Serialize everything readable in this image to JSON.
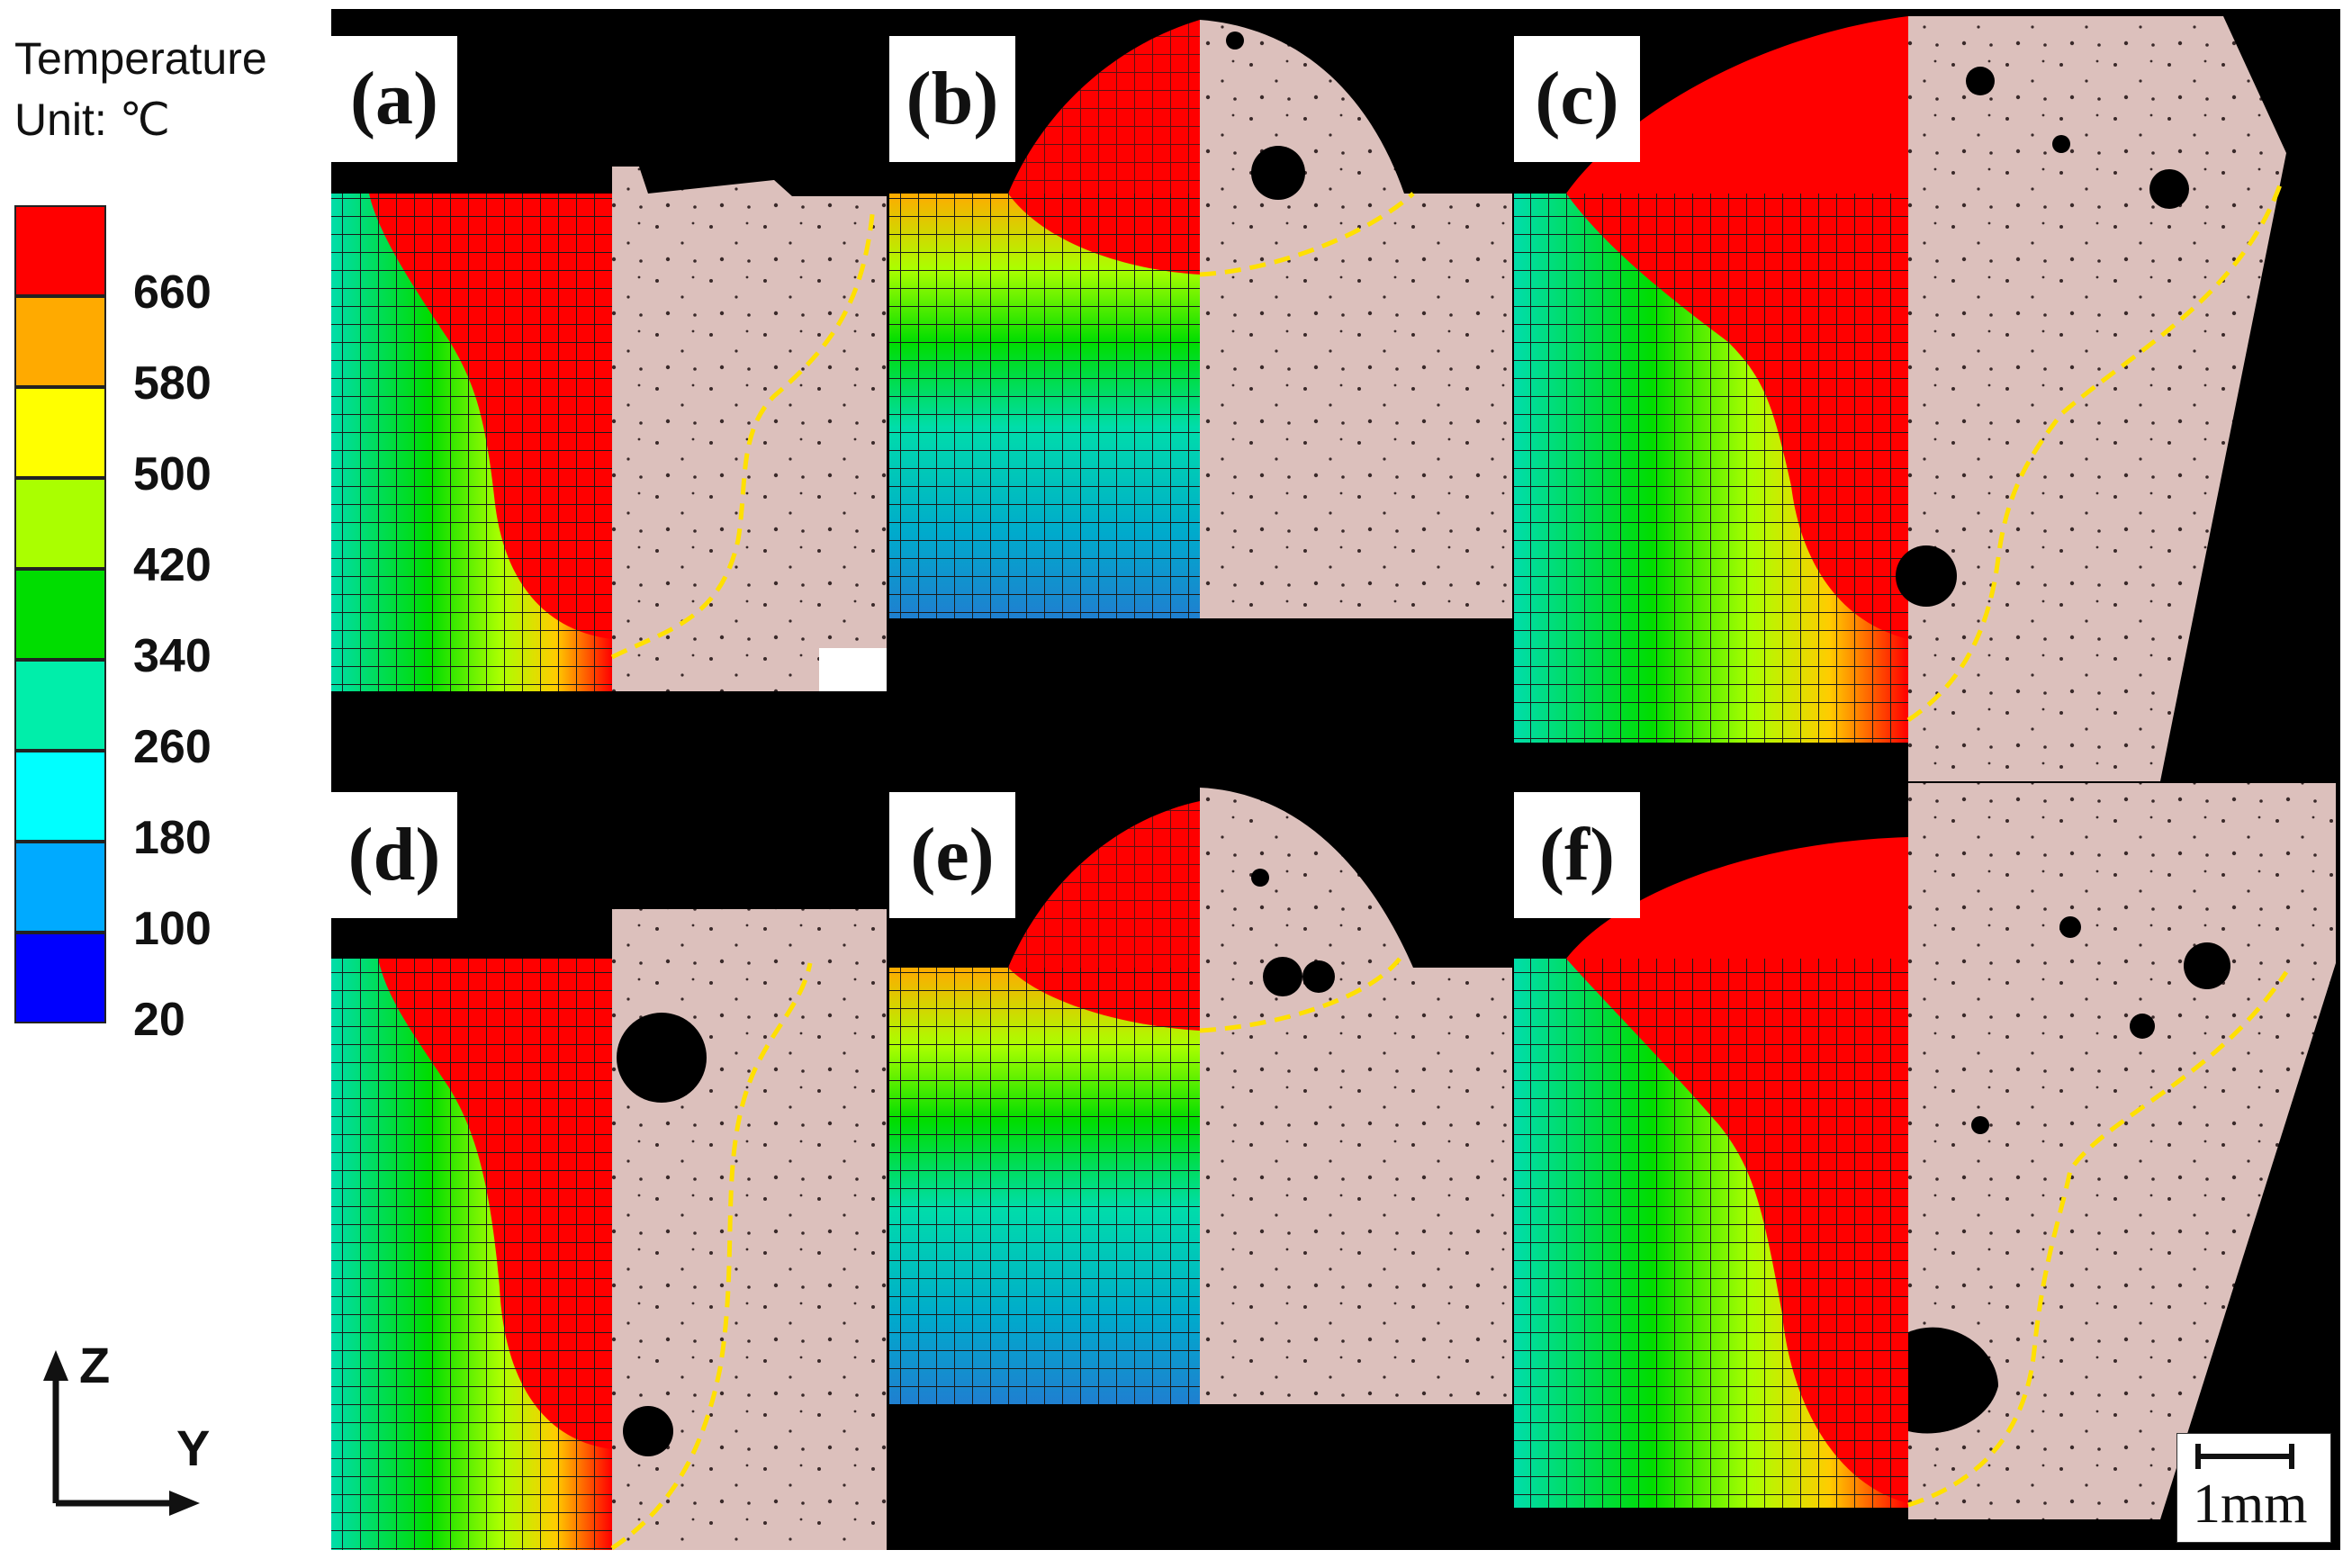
{
  "legend": {
    "title_line1": "Temperature",
    "title_line2": "Unit: ℃",
    "bands": [
      {
        "color": "#ff0000"
      },
      {
        "color": "#ffaa00"
      },
      {
        "color": "#ffff00"
      },
      {
        "color": "#aaff00"
      },
      {
        "color": "#00dd00"
      },
      {
        "color": "#00eeaa"
      },
      {
        "color": "#00ffff"
      },
      {
        "color": "#00aaff"
      },
      {
        "color": "#0000ff"
      }
    ],
    "values": [
      "660",
      "580",
      "500",
      "420",
      "340",
      "260",
      "180",
      "100",
      "20"
    ]
  },
  "axes": {
    "z_label": "Z",
    "y_label": "Y"
  },
  "panels": [
    {
      "id": "a",
      "label": "(a)"
    },
    {
      "id": "b",
      "label": "(b)"
    },
    {
      "id": "c",
      "label": "(c)"
    },
    {
      "id": "d",
      "label": "(d)"
    },
    {
      "id": "e",
      "label": "(e)"
    },
    {
      "id": "f",
      "label": "(f)"
    }
  ],
  "scale_bar": {
    "label": "1mm"
  },
  "colors": {
    "background": "#000000",
    "micrograph": "#dcc0bc",
    "fusion_line": "#ffe000",
    "mesh_line": "#1a1a1a",
    "mask_gray": "#333333"
  }
}
